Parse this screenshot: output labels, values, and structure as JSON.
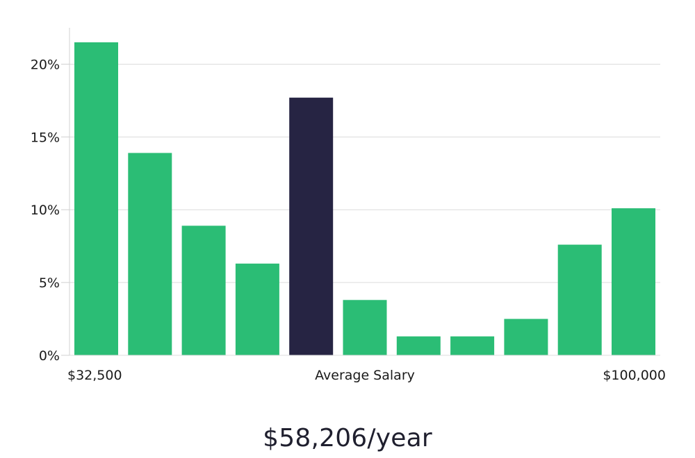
{
  "chart_data": {
    "type": "bar",
    "categories": [
      "",
      "",
      "",
      "",
      "",
      "",
      "",
      "",
      "",
      "",
      ""
    ],
    "values": [
      21.5,
      13.9,
      8.9,
      6.3,
      17.7,
      3.8,
      1.3,
      1.3,
      2.5,
      7.6,
      10.1
    ],
    "highlight_index": 4,
    "ylim": [
      0,
      22.5
    ],
    "yticks": [
      0,
      5,
      10,
      15,
      20
    ],
    "ytick_labels": [
      "0%",
      "5%",
      "10%",
      "15%",
      "20%"
    ],
    "x_labels": {
      "left": "$32,500",
      "center": "Average Salary",
      "right": "$100,000"
    },
    "grid": true,
    "colors": {
      "bar": "#2bbd75",
      "highlight": "#262443",
      "grid": "#dcdcdc",
      "axis": "#d0d0d0"
    }
  },
  "caption": "$58,206/year"
}
